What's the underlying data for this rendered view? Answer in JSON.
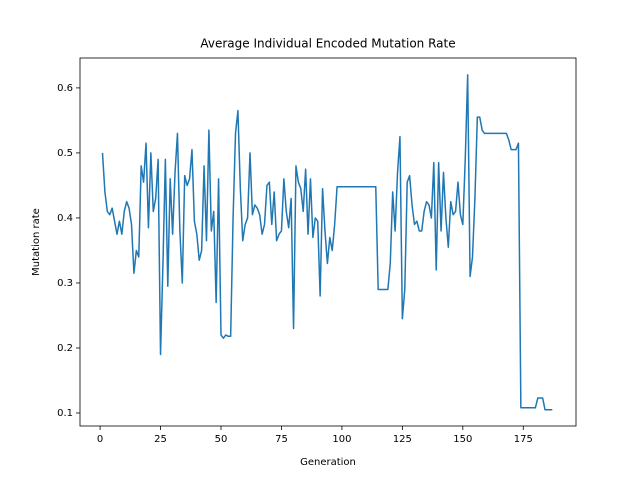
{
  "chart_data": {
    "type": "line",
    "title": "Average Individual Encoded Mutation Rate",
    "x_label": "Generation",
    "y_label": "Mutation rate",
    "x": [
      1,
      2,
      3,
      4,
      5,
      6,
      7,
      8,
      9,
      10,
      11,
      12,
      13,
      14,
      15,
      16,
      17,
      18,
      19,
      20,
      21,
      22,
      23,
      24,
      25,
      26,
      27,
      28,
      29,
      30,
      31,
      32,
      33,
      34,
      35,
      36,
      37,
      38,
      39,
      40,
      41,
      42,
      43,
      44,
      45,
      46,
      47,
      48,
      49,
      50,
      51,
      52,
      53,
      54,
      55,
      56,
      57,
      58,
      59,
      60,
      61,
      62,
      63,
      64,
      65,
      66,
      67,
      68,
      69,
      70,
      71,
      72,
      73,
      74,
      75,
      76,
      77,
      78,
      79,
      80,
      81,
      82,
      83,
      84,
      85,
      86,
      87,
      88,
      89,
      90,
      91,
      92,
      93,
      94,
      95,
      96,
      97,
      98,
      99,
      100,
      101,
      102,
      103,
      104,
      105,
      106,
      107,
      108,
      109,
      110,
      111,
      112,
      113,
      114,
      115,
      116,
      117,
      118,
      119,
      120,
      121,
      122,
      123,
      124,
      125,
      126,
      127,
      128,
      129,
      130,
      131,
      132,
      133,
      134,
      135,
      136,
      137,
      138,
      139,
      140,
      141,
      142,
      143,
      144,
      145,
      146,
      147,
      148,
      149,
      150,
      151,
      152,
      153,
      154,
      155,
      156,
      157,
      158,
      159,
      160,
      161,
      162,
      163,
      164,
      165,
      166,
      167,
      168,
      169,
      170,
      171,
      172,
      173,
      174,
      175,
      176,
      177,
      178,
      179,
      180,
      181,
      182,
      183,
      184,
      185,
      186,
      187
    ],
    "series": [
      {
        "name": "Mutation rate",
        "color": "#1f77b4",
        "values": [
          0.5,
          0.44,
          0.41,
          0.405,
          0.415,
          0.395,
          0.375,
          0.395,
          0.375,
          0.41,
          0.425,
          0.415,
          0.39,
          0.315,
          0.35,
          0.34,
          0.48,
          0.455,
          0.515,
          0.385,
          0.5,
          0.41,
          0.43,
          0.49,
          0.19,
          0.33,
          0.49,
          0.295,
          0.46,
          0.375,
          0.47,
          0.53,
          0.38,
          0.3,
          0.465,
          0.45,
          0.46,
          0.505,
          0.395,
          0.375,
          0.335,
          0.35,
          0.48,
          0.365,
          0.535,
          0.38,
          0.41,
          0.27,
          0.46,
          0.22,
          0.215,
          0.22,
          0.218,
          0.218,
          0.4,
          0.53,
          0.565,
          0.445,
          0.365,
          0.39,
          0.4,
          0.5,
          0.405,
          0.42,
          0.415,
          0.405,
          0.375,
          0.39,
          0.45,
          0.455,
          0.39,
          0.44,
          0.365,
          0.375,
          0.38,
          0.46,
          0.41,
          0.385,
          0.43,
          0.23,
          0.48,
          0.455,
          0.445,
          0.41,
          0.475,
          0.375,
          0.46,
          0.37,
          0.4,
          0.395,
          0.28,
          0.445,
          0.38,
          0.33,
          0.37,
          0.35,
          0.39,
          0.448,
          0.448,
          0.448,
          0.448,
          0.448,
          0.448,
          0.448,
          0.448,
          0.448,
          0.448,
          0.448,
          0.448,
          0.448,
          0.448,
          0.448,
          0.448,
          0.448,
          0.29,
          0.29,
          0.29,
          0.29,
          0.29,
          0.33,
          0.44,
          0.38,
          0.47,
          0.525,
          0.245,
          0.29,
          0.455,
          0.465,
          0.42,
          0.39,
          0.395,
          0.38,
          0.38,
          0.41,
          0.425,
          0.42,
          0.4,
          0.485,
          0.32,
          0.485,
          0.38,
          0.47,
          0.4,
          0.355,
          0.425,
          0.405,
          0.41,
          0.455,
          0.405,
          0.39,
          0.49,
          0.62,
          0.31,
          0.34,
          0.43,
          0.555,
          0.555,
          0.535,
          0.53,
          0.53,
          0.53,
          0.53,
          0.53,
          0.53,
          0.53,
          0.53,
          0.53,
          0.53,
          0.52,
          0.505,
          0.505,
          0.505,
          0.515,
          0.108,
          0.108,
          0.108,
          0.108,
          0.108,
          0.108,
          0.108,
          0.123,
          0.123,
          0.123,
          0.105,
          0.105,
          0.105,
          0.105
        ]
      }
    ],
    "xlim": [
      -8.3,
      196.8
    ],
    "ylim": [
      0.08,
      0.646
    ],
    "xticks": [
      0,
      25,
      50,
      75,
      100,
      125,
      150,
      175
    ],
    "yticks": [
      0.1,
      0.2,
      0.3,
      0.4,
      0.5,
      0.6
    ]
  }
}
